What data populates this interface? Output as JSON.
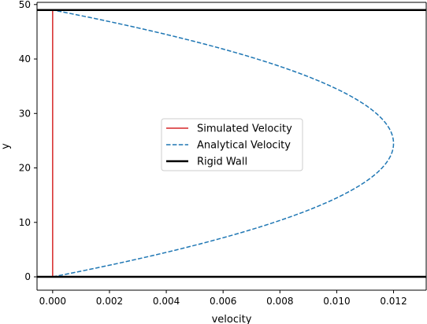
{
  "chart_data": {
    "type": "line",
    "title": "",
    "xlabel": "velocity",
    "ylabel": "y",
    "xlim": [
      -0.00055,
      0.01315
    ],
    "ylim": [
      -2.45,
      50.4
    ],
    "x_ticks": [
      0.0,
      0.002,
      0.004,
      0.006,
      0.008,
      0.01,
      0.012
    ],
    "x_tick_labels": [
      "0.000",
      "0.002",
      "0.004",
      "0.006",
      "0.008",
      "0.010",
      "0.012"
    ],
    "y_ticks": [
      0,
      10,
      20,
      30,
      40,
      50
    ],
    "y_tick_labels": [
      "0",
      "10",
      "20",
      "30",
      "40",
      "50"
    ],
    "grid": false,
    "legend_position": "center",
    "series": [
      {
        "name": "Simulated Velocity",
        "style": "solid",
        "color": "#d62728",
        "points": [
          [
            0.0,
            0
          ],
          [
            0.0,
            49
          ]
        ]
      },
      {
        "name": "Analytical Velocity",
        "style": "dashed",
        "color": "#1f77b4",
        "profile": "parabolic",
        "u_max": 0.012,
        "y_min": 0,
        "y_max": 49
      },
      {
        "name": "Rigid Wall",
        "style": "solid",
        "color": "#000000",
        "walls_y": [
          0,
          49
        ]
      }
    ]
  }
}
